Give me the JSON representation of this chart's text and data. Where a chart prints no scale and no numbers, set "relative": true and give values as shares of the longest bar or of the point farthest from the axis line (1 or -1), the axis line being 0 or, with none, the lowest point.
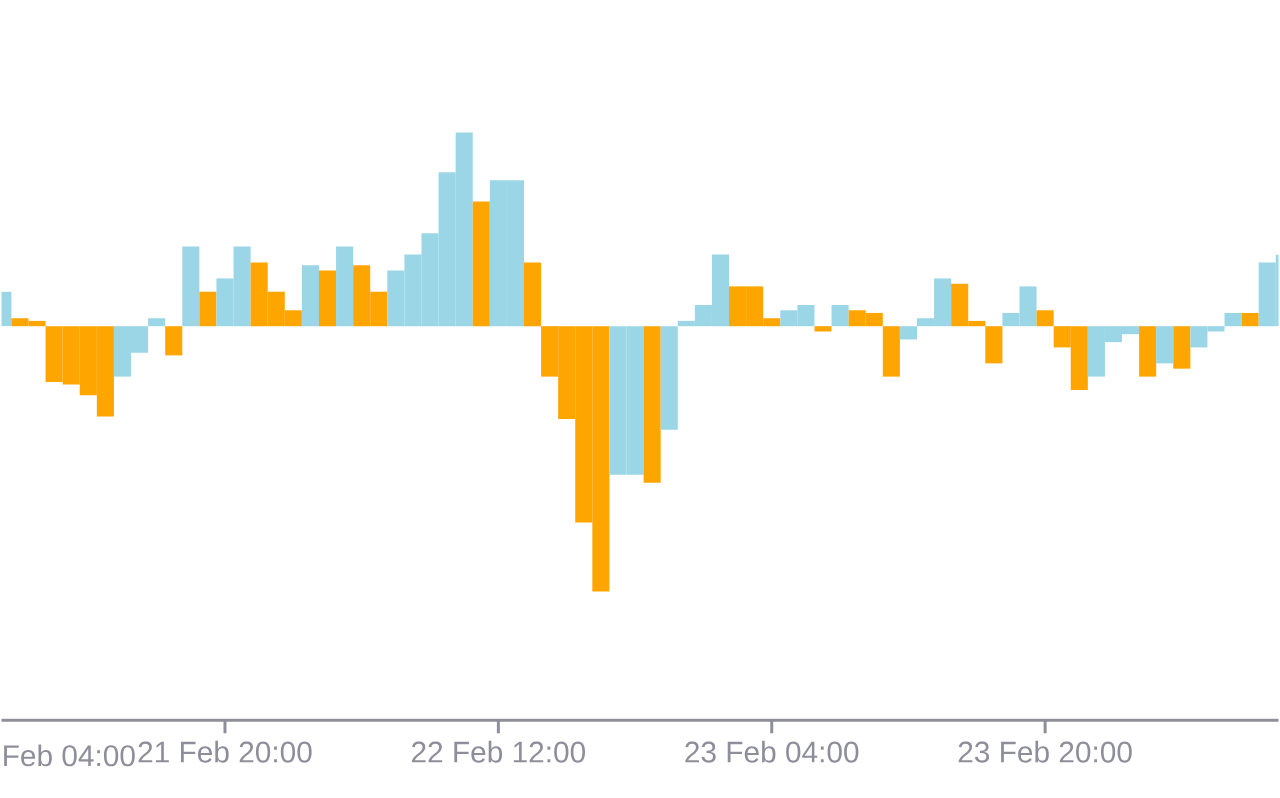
{
  "chart_data": {
    "type": "bar",
    "relative": true,
    "categories": [
      null,
      null,
      null,
      null,
      null,
      null,
      null,
      null,
      null,
      null,
      null,
      null,
      null,
      "21 Feb 20:00",
      null,
      null,
      null,
      null,
      null,
      null,
      null,
      null,
      null,
      null,
      null,
      null,
      null,
      null,
      null,
      "22 Feb 12:00",
      null,
      null,
      null,
      null,
      null,
      null,
      null,
      null,
      null,
      null,
      null,
      null,
      null,
      null,
      null,
      "23 Feb 04:00",
      null,
      null,
      null,
      null,
      null,
      null,
      null,
      null,
      null,
      null,
      null,
      null,
      null,
      null,
      null,
      "23 Feb 20:00",
      null,
      null,
      null,
      null,
      null,
      null,
      null,
      null,
      null,
      null,
      null,
      null,
      null,
      null
    ],
    "values": [
      0.13,
      0.03,
      0.02,
      -0.21,
      -0.22,
      -0.26,
      -0.34,
      -0.19,
      -0.1,
      0.03,
      -0.11,
      0.3,
      0.13,
      0.18,
      0.3,
      0.24,
      0.13,
      0.06,
      0.23,
      0.21,
      0.3,
      0.23,
      0.13,
      0.21,
      0.27,
      0.35,
      0.58,
      0.73,
      0.47,
      0.55,
      0.55,
      0.24,
      -0.19,
      -0.35,
      -0.74,
      -1,
      -0.56,
      -0.56,
      -0.59,
      -0.39,
      0.02,
      0.08,
      0.27,
      0.15,
      0.15,
      0.03,
      0.06,
      0.08,
      -0.02,
      0.08,
      0.06,
      0.05,
      -0.19,
      -0.05,
      0.03,
      0.18,
      0.16,
      0.02,
      -0.14,
      0.05,
      0.15,
      0.06,
      -0.08,
      -0.24,
      -0.19,
      -0.06,
      -0.03,
      -0.19,
      -0.14,
      -0.16,
      -0.08,
      -0.02,
      0.05,
      0.05,
      0.24,
      0.27
    ],
    "colors": [
      "#9ad6e6",
      "#ffa500",
      "#ffa500",
      "#ffa500",
      "#ffa500",
      "#ffa500",
      "#ffa500",
      "#9ad6e6",
      "#9ad6e6",
      "#9ad6e6",
      "#ffa500",
      "#9ad6e6",
      "#ffa500",
      "#9ad6e6",
      "#9ad6e6",
      "#ffa500",
      "#ffa500",
      "#ffa500",
      "#9ad6e6",
      "#ffa500",
      "#9ad6e6",
      "#ffa500",
      "#ffa500",
      "#9ad6e6",
      "#9ad6e6",
      "#9ad6e6",
      "#9ad6e6",
      "#9ad6e6",
      "#ffa500",
      "#9ad6e6",
      "#9ad6e6",
      "#ffa500",
      "#ffa500",
      "#ffa500",
      "#ffa500",
      "#ffa500",
      "#9ad6e6",
      "#9ad6e6",
      "#ffa500",
      "#9ad6e6",
      "#9ad6e6",
      "#9ad6e6",
      "#9ad6e6",
      "#ffa500",
      "#ffa500",
      "#ffa500",
      "#9ad6e6",
      "#9ad6e6",
      "#ffa500",
      "#9ad6e6",
      "#ffa500",
      "#ffa500",
      "#ffa500",
      "#9ad6e6",
      "#9ad6e6",
      "#9ad6e6",
      "#ffa500",
      "#ffa500",
      "#ffa500",
      "#9ad6e6",
      "#9ad6e6",
      "#ffa500",
      "#ffa500",
      "#ffa500",
      "#9ad6e6",
      "#9ad6e6",
      "#9ad6e6",
      "#ffa500",
      "#9ad6e6",
      "#ffa500",
      "#9ad6e6",
      "#9ad6e6",
      "#9ad6e6",
      "#ffa500",
      "#9ad6e6",
      "#9ad6e6"
    ],
    "annotations": [
      "Feb 04:00"
    ]
  }
}
